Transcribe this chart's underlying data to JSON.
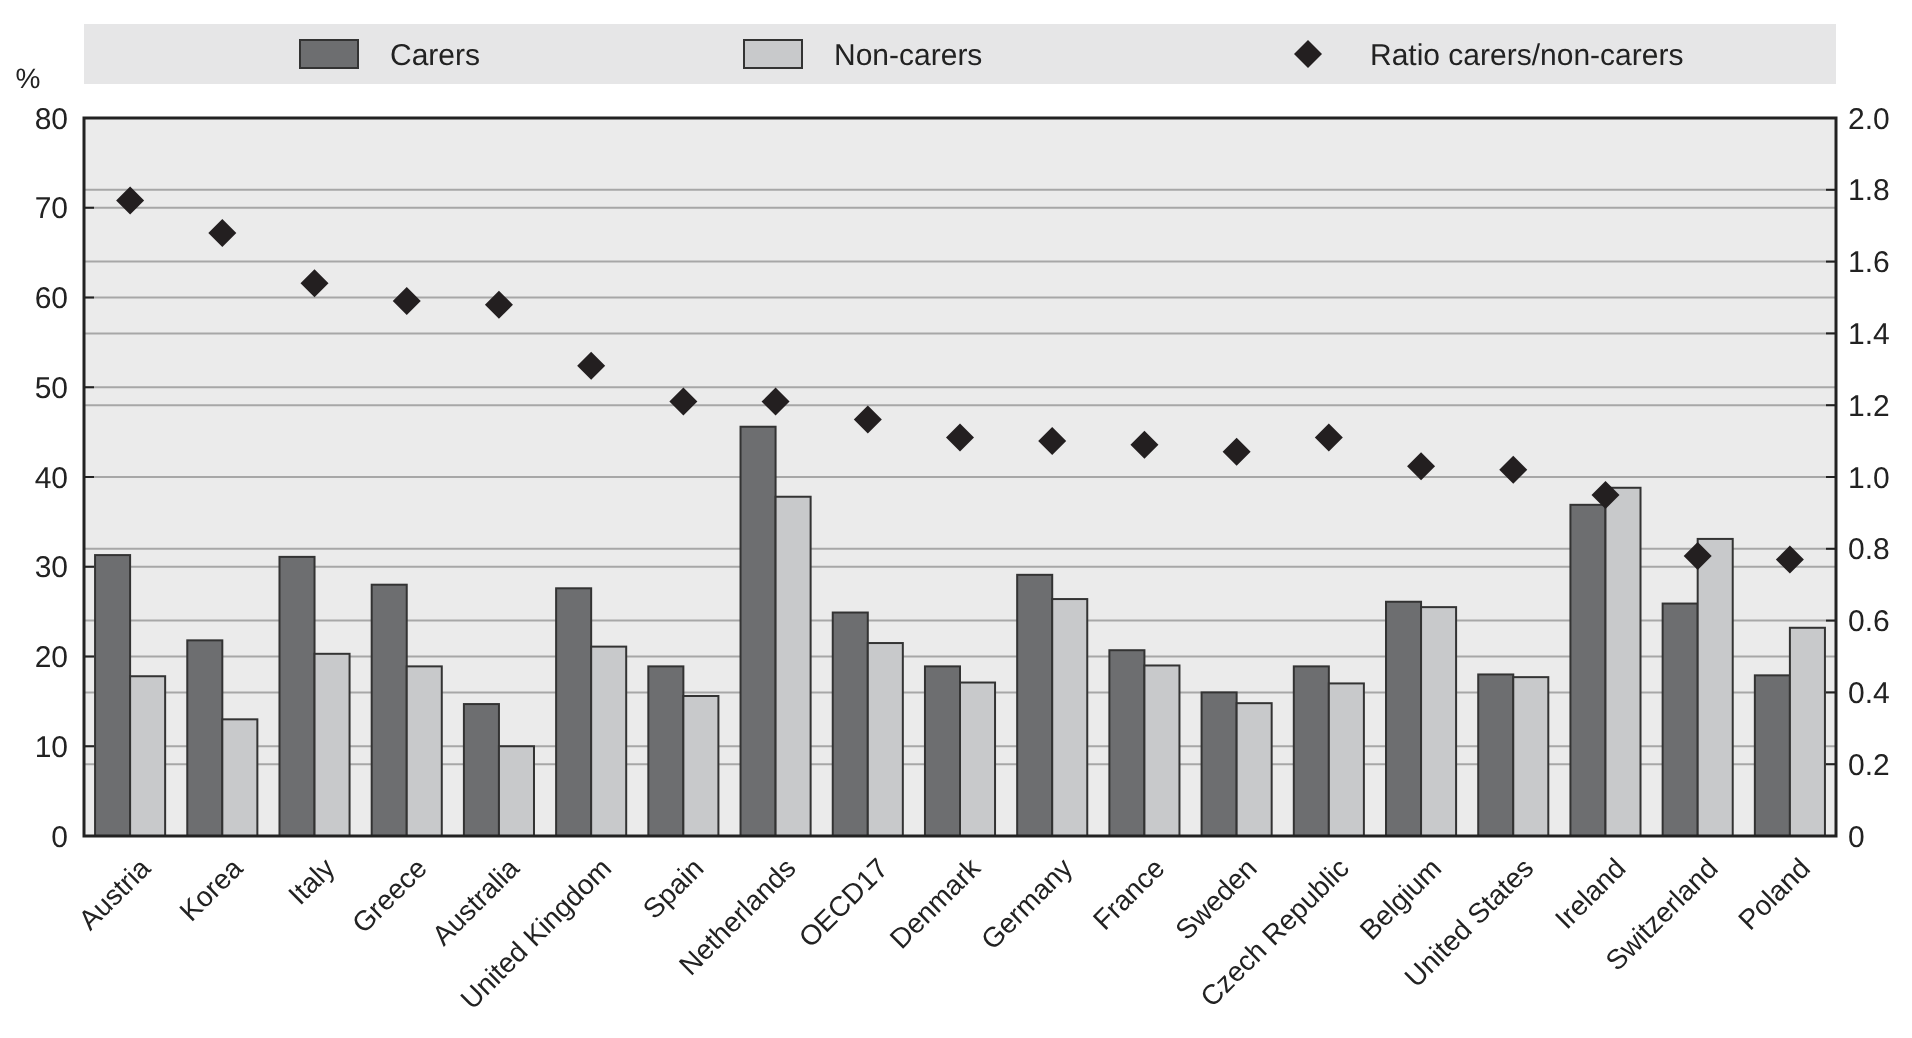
{
  "chart_data": {
    "type": "bar",
    "ylabel": "%",
    "categories": [
      "Austria",
      "Korea",
      "Italy",
      "Greece",
      "Australia",
      "United Kingdom",
      "Spain",
      "Netherlands",
      "OECD17",
      "Denmark",
      "Germany",
      "France",
      "Sweden",
      "Czech Republic",
      "Belgium",
      "United States",
      "Ireland",
      "Switzerland",
      "Poland"
    ],
    "series": [
      {
        "name": "Carers",
        "color": "#6d6e70",
        "values": [
          31.3,
          21.8,
          31.1,
          28,
          14.7,
          27.6,
          18.9,
          45.6,
          24.9,
          18.9,
          29.1,
          20.7,
          16,
          18.9,
          26.1,
          18,
          36.9,
          25.9,
          17.9
        ]
      },
      {
        "name": "Non-carers",
        "color": "#c8c9cb",
        "values": [
          17.8,
          13,
          20.3,
          18.9,
          10,
          21.1,
          15.6,
          37.8,
          21.5,
          17.1,
          26.4,
          19,
          14.8,
          17,
          25.5,
          17.7,
          38.8,
          33.1,
          23.2
        ]
      },
      {
        "name": "Ratio carers/non-carers",
        "type": "scatter",
        "axis": "y2",
        "marker": "diamond",
        "color": "#231f20",
        "values": [
          1.77,
          1.68,
          1.54,
          1.49,
          1.48,
          1.31,
          1.21,
          1.21,
          1.16,
          1.11,
          1.1,
          1.09,
          1.07,
          1.11,
          1.03,
          1.02,
          0.95,
          0.78,
          0.77
        ]
      }
    ],
    "ylim": [
      0,
      80
    ],
    "yticks": [
      0,
      10,
      20,
      30,
      40,
      50,
      60,
      70,
      80
    ],
    "y2lim": [
      0,
      2
    ],
    "y2ticks": [
      0,
      {
        "value": 0.2,
        "label": "0.2"
      },
      {
        "value": 0.4,
        "label": "0.4"
      },
      {
        "value": 0.6,
        "label": "0.6"
      },
      {
        "value": 0.8,
        "label": "0.8"
      },
      {
        "value": 1,
        "label": "1.0"
      },
      {
        "value": 1.2,
        "label": "1.2"
      },
      {
        "value": 1.4,
        "label": "1.4"
      },
      {
        "value": 1.6,
        "label": "1.6"
      },
      {
        "value": 1.8,
        "label": "1.8"
      },
      {
        "value": 2,
        "label": "2.0"
      }
    ],
    "grid": true,
    "legend": "top"
  }
}
